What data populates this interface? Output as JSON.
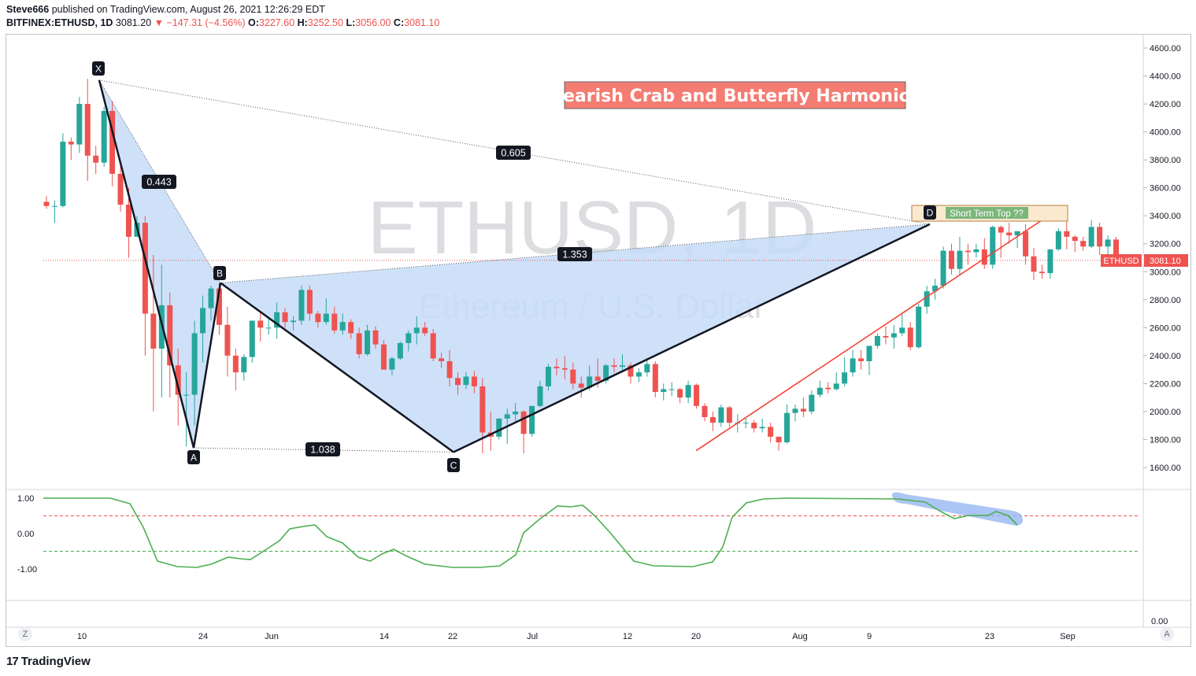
{
  "header": {
    "publisher": "Steve666",
    "published_text": "published on TradingView.com, August 26, 2021 12:26:29 EDT",
    "symbol": "BITFINEX:ETHUSD, 1D",
    "last": "3081.20",
    "change": "▼ −147.31 (−4.56%)",
    "o_label": "O:",
    "o_val": "3227.60",
    "h_label": "H:",
    "h_val": "3252.50",
    "l_label": "L:",
    "l_val": "3056.00",
    "c_label": "C:",
    "c_val": "3081.10"
  },
  "watermark": {
    "line1": "ETHUSD, 1D",
    "line2": "Ethereum / U.S. Dollar"
  },
  "annotations": {
    "banner": "Bearish Crab and Butterfly Harmonics",
    "short_term_top": "Short Term Top ??",
    "points": {
      "X": "X",
      "A": "A",
      "B": "B",
      "C": "C",
      "D": "D"
    },
    "ratios": {
      "xb": "0.443",
      "xd": "0.605",
      "bd": "1.353",
      "ac": "1.038"
    }
  },
  "price_label": {
    "symbol": "ETHUSD",
    "value": "3081.10"
  },
  "osc_axis": [
    "1.00",
    "0.00",
    "-1.00",
    "0.00"
  ],
  "axis_buttons": {
    "left": "Z",
    "right": "A"
  },
  "brand": {
    "name": "TradingView",
    "glyph": "17"
  },
  "colors": {
    "up": "#26a69a",
    "down": "#ef5350",
    "pattern_fill": "#c5dcf8",
    "trendline": "#f44336",
    "oscillator": "#4caf50",
    "banner_bg": "#f47c72"
  },
  "chart_data": {
    "type": "candlestick",
    "title": "ETHUSD, 1D",
    "y_ticks": [
      "4600.00",
      "4400.00",
      "4200.00",
      "4000.00",
      "3800.00",
      "3600.00",
      "3400.00",
      "3200.00",
      "3000.00",
      "2800.00",
      "2600.00",
      "2400.00",
      "2200.00",
      "2000.00",
      "1800.00",
      "1600.00"
    ],
    "ylim": [
      1480,
      4680
    ],
    "x_ticks": [
      "10",
      "24",
      "Jun",
      "14",
      "22",
      "Jul",
      "12",
      "20",
      "Aug",
      "9",
      "23",
      "Sep"
    ],
    "candles": [
      [
        3500,
        3540,
        3450,
        3470
      ],
      [
        3470,
        3510,
        3350,
        3470
      ],
      [
        3470,
        3990,
        3460,
        3930
      ],
      [
        3930,
        3960,
        3800,
        3910
      ],
      [
        3910,
        4250,
        3850,
        4200
      ],
      [
        4200,
        4380,
        3650,
        3830
      ],
      [
        3830,
        3900,
        3700,
        3780
      ],
      [
        3780,
        4180,
        3750,
        4150
      ],
      [
        4150,
        4220,
        3610,
        3700
      ],
      [
        3700,
        3780,
        3430,
        3480
      ],
      [
        3480,
        3600,
        3100,
        3250
      ],
      [
        3250,
        3400,
        3250,
        3350
      ],
      [
        3350,
        3400,
        2400,
        2700
      ],
      [
        2700,
        3120,
        2000,
        2450
      ],
      [
        2450,
        3050,
        2100,
        2760
      ],
      [
        2760,
        2850,
        2100,
        2330
      ],
      [
        2330,
        2450,
        1900,
        2120
      ],
      [
        2120,
        2280,
        1750,
        2120
      ],
      [
        2120,
        2650,
        1900,
        2560
      ],
      [
        2560,
        2830,
        2350,
        2740
      ],
      [
        2740,
        2900,
        2650,
        2880
      ],
      [
        2880,
        2920,
        2550,
        2620
      ],
      [
        2620,
        2750,
        2250,
        2400
      ],
      [
        2400,
        2450,
        2150,
        2280
      ],
      [
        2280,
        2410,
        2220,
        2390
      ],
      [
        2390,
        2650,
        2350,
        2650
      ],
      [
        2650,
        2720,
        2500,
        2600
      ],
      [
        2600,
        2680,
        2550,
        2600
      ],
      [
        2600,
        2780,
        2520,
        2710
      ],
      [
        2710,
        2740,
        2600,
        2640
      ],
      [
        2640,
        2680,
        2580,
        2650
      ],
      [
        2650,
        2900,
        2620,
        2870
      ],
      [
        2870,
        2900,
        2650,
        2700
      ],
      [
        2700,
        2720,
        2600,
        2640
      ],
      [
        2640,
        2810,
        2620,
        2700
      ],
      [
        2700,
        2750,
        2560,
        2580
      ],
      [
        2580,
        2700,
        2550,
        2640
      ],
      [
        2640,
        2660,
        2520,
        2560
      ],
      [
        2560,
        2600,
        2380,
        2410
      ],
      [
        2410,
        2620,
        2400,
        2580
      ],
      [
        2580,
        2610,
        2450,
        2480
      ],
      [
        2480,
        2510,
        2300,
        2300
      ],
      [
        2300,
        2390,
        2260,
        2380
      ],
      [
        2380,
        2500,
        2370,
        2490
      ],
      [
        2490,
        2580,
        2430,
        2560
      ],
      [
        2560,
        2680,
        2480,
        2600
      ],
      [
        2600,
        2640,
        2540,
        2560
      ],
      [
        2560,
        2590,
        2360,
        2380
      ],
      [
        2380,
        2420,
        2310,
        2360
      ],
      [
        2360,
        2440,
        2180,
        2240
      ],
      [
        2240,
        2280,
        2120,
        2190
      ],
      [
        2190,
        2280,
        2160,
        2250
      ],
      [
        2250,
        2290,
        2130,
        2180
      ],
      [
        2180,
        2240,
        1700,
        1850
      ],
      [
        1850,
        2000,
        1720,
        1820
      ],
      [
        1820,
        1950,
        1800,
        1950
      ],
      [
        1950,
        2020,
        1770,
        1980
      ],
      [
        1980,
        2060,
        1920,
        2000
      ],
      [
        2000,
        2010,
        1700,
        1840
      ],
      [
        1840,
        2040,
        1820,
        2040
      ],
      [
        2040,
        2220,
        2030,
        2180
      ],
      [
        2180,
        2340,
        2150,
        2320
      ],
      [
        2320,
        2380,
        2260,
        2310
      ],
      [
        2310,
        2400,
        2230,
        2300
      ],
      [
        2300,
        2350,
        2160,
        2200
      ],
      [
        2200,
        2250,
        2100,
        2170
      ],
      [
        2170,
        2330,
        2150,
        2250
      ],
      [
        2250,
        2380,
        2170,
        2220
      ],
      [
        2220,
        2340,
        2200,
        2330
      ],
      [
        2330,
        2380,
        2280,
        2320
      ],
      [
        2320,
        2410,
        2300,
        2330
      ],
      [
        2330,
        2350,
        2200,
        2250
      ],
      [
        2250,
        2310,
        2210,
        2280
      ],
      [
        2280,
        2380,
        2250,
        2340
      ],
      [
        2340,
        2360,
        2100,
        2140
      ],
      [
        2140,
        2200,
        2080,
        2160
      ],
      [
        2160,
        2210,
        2110,
        2160
      ],
      [
        2160,
        2170,
        2060,
        2100
      ],
      [
        2100,
        2220,
        2060,
        2190
      ],
      [
        2190,
        2200,
        2020,
        2040
      ],
      [
        2040,
        2060,
        1930,
        1960
      ],
      [
        1960,
        2000,
        1860,
        1920
      ],
      [
        1920,
        2050,
        1890,
        2030
      ],
      [
        2030,
        2040,
        1890,
        1920
      ],
      [
        1920,
        1980,
        1850,
        1920
      ],
      [
        1920,
        1950,
        1880,
        1920
      ],
      [
        1920,
        1940,
        1850,
        1880
      ],
      [
        1880,
        1950,
        1850,
        1890
      ],
      [
        1890,
        1920,
        1780,
        1820
      ],
      [
        1820,
        1820,
        1720,
        1780
      ],
      [
        1780,
        2050,
        1770,
        1990
      ],
      [
        1990,
        2050,
        1930,
        2020
      ],
      [
        2020,
        2100,
        1960,
        2000
      ],
      [
        2000,
        2150,
        1980,
        2120
      ],
      [
        2120,
        2220,
        2100,
        2170
      ],
      [
        2170,
        2210,
        2130,
        2160
      ],
      [
        2160,
        2280,
        2150,
        2200
      ],
      [
        2200,
        2390,
        2180,
        2280
      ],
      [
        2280,
        2440,
        2250,
        2380
      ],
      [
        2380,
        2440,
        2300,
        2360
      ],
      [
        2360,
        2450,
        2260,
        2470
      ],
      [
        2470,
        2560,
        2450,
        2540
      ],
      [
        2540,
        2610,
        2480,
        2530
      ],
      [
        2530,
        2620,
        2450,
        2560
      ],
      [
        2560,
        2700,
        2540,
        2600
      ],
      [
        2600,
        2640,
        2440,
        2460
      ],
      [
        2460,
        2770,
        2450,
        2750
      ],
      [
        2750,
        2900,
        2700,
        2860
      ],
      [
        2860,
        2950,
        2800,
        2900
      ],
      [
        2900,
        3180,
        2880,
        3150
      ],
      [
        3150,
        3200,
        2980,
        3020
      ],
      [
        3020,
        3250,
        2980,
        3150
      ],
      [
        3150,
        3200,
        3050,
        3140
      ],
      [
        3140,
        3200,
        3100,
        3160
      ],
      [
        3160,
        3240,
        3020,
        3050
      ],
      [
        3050,
        3330,
        3020,
        3320
      ],
      [
        3320,
        3330,
        3100,
        3280
      ],
      [
        3280,
        3350,
        3200,
        3260
      ],
      [
        3260,
        3280,
        3170,
        3290
      ],
      [
        3290,
        3340,
        3050,
        3110
      ],
      [
        3110,
        3170,
        2940,
        3000
      ],
      [
        3000,
        3050,
        2950,
        2990
      ],
      [
        2990,
        3160,
        2950,
        3160
      ],
      [
        3160,
        3310,
        3150,
        3290
      ],
      [
        3290,
        3360,
        3160,
        3250
      ],
      [
        3250,
        3260,
        3140,
        3220
      ],
      [
        3220,
        3250,
        3150,
        3180
      ],
      [
        3180,
        3370,
        3170,
        3320
      ],
      [
        3320,
        3350,
        3120,
        3180
      ],
      [
        3180,
        3260,
        3080,
        3230
      ],
      [
        3230,
        3250,
        3060,
        3080
      ]
    ],
    "pattern": {
      "X": 4370,
      "A": 1740,
      "B": 2920,
      "C": 1710,
      "D": 3340
    },
    "oscillator": {
      "levels": [
        0.5,
        -0.5
      ],
      "ylim": [
        -2.5,
        1.25
      ]
    }
  }
}
